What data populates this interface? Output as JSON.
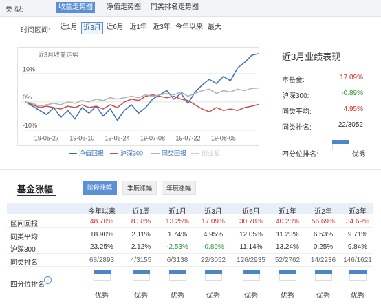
{
  "nav": {
    "type_label": "类 型:",
    "chart_tabs": [
      "收益走势图",
      "净值走势图",
      "同类排名走势图"
    ],
    "selected_tab": 0,
    "period_label": "时间区间:",
    "periods": [
      "近1月",
      "近3月",
      "近6月",
      "近1年",
      "近3年",
      "今年以来",
      "最大"
    ],
    "selected_period": 1
  },
  "chart_data": {
    "type": "line",
    "title": "近3月收益走势",
    "x": [
      "19-05-17",
      "19-05-21",
      "19-05-23",
      "19-05-27",
      "19-05-29",
      "19-05-31",
      "19-06-04",
      "19-06-06",
      "19-06-10",
      "19-06-12",
      "19-06-14",
      "19-06-18",
      "19-06-20",
      "19-06-24",
      "19-06-26",
      "19-06-28",
      "19-07-02",
      "19-07-04",
      "19-07-08",
      "19-07-10",
      "19-07-12",
      "19-07-16",
      "19-07-18",
      "19-07-22",
      "19-07-24",
      "19-07-26",
      "19-07-30",
      "19-08-01",
      "19-08-05",
      "19-08-07",
      "19-08-09",
      "19-08-13",
      "19-08-15",
      "19-08-16"
    ],
    "xticks": [
      "19-05-27",
      "19-06-10",
      "19-06-24",
      "19-07-08",
      "19-07-22",
      "19-08-05"
    ],
    "ylim": [
      -11.5,
      19
    ],
    "yticks": [
      {
        "value": 10,
        "label": "10%"
      },
      {
        "value": 0,
        "label": "0%"
      },
      {
        "value": -10,
        "label": "-10%"
      }
    ],
    "grid": true,
    "series": [
      {
        "name": "净值回报",
        "color": "#3a6fb5",
        "values": [
          0,
          -1.5,
          -3,
          -4.5,
          -2,
          -5.5,
          -3,
          -6,
          -2,
          -4,
          -1.5,
          -5,
          -2.5,
          -6.5,
          -3,
          -1,
          -4,
          -2,
          1,
          2.5,
          4,
          1,
          3,
          -0.5,
          3.5,
          6,
          8,
          6.5,
          9,
          7.5,
          12,
          14,
          16.5,
          17.09
        ]
      },
      {
        "name": "沪深300",
        "color": "#c0504d",
        "values": [
          0,
          -1,
          -2,
          -1.5,
          -2,
          -2.5,
          -1.5,
          -2,
          -1,
          -2,
          -1.5,
          -2.5,
          -1,
          -2,
          0,
          1,
          0.5,
          2,
          2.5,
          2,
          1.5,
          2,
          1,
          0.5,
          -1,
          -2.5,
          -3.5,
          -2,
          -3,
          -2.5,
          -3,
          -2,
          -1.5,
          -0.89
        ]
      },
      {
        "name": "同类回报",
        "color": "#b0b0b0",
        "values": [
          0,
          -0.5,
          -1.5,
          -1,
          -0.5,
          -1,
          0,
          -0.5,
          0.5,
          0,
          1,
          0.5,
          1.5,
          1,
          1.5,
          2,
          1.5,
          2.5,
          2,
          2.5,
          3,
          2.5,
          3.5,
          2,
          3,
          4,
          4.5,
          3,
          4,
          3.5,
          4.5,
          4,
          4.8,
          4.95
        ]
      }
    ],
    "hidden_series": [
      {
        "name": "创业板",
        "color": "#cccccc"
      }
    ]
  },
  "performance": {
    "title": "近3月业绩表现",
    "rows": [
      {
        "label": "本基金:",
        "value": "17.09%"
      },
      {
        "label": "沪深300:",
        "value": "-0.89%"
      },
      {
        "label": "同类平均:",
        "value": "4.95%"
      },
      {
        "label": "同类排名:",
        "value": "22/3052"
      }
    ],
    "quartile_label": "四分位排名:",
    "quartile_value": "优秀"
  },
  "section": {
    "title": "基金涨幅",
    "tabs": [
      "阶段涨幅",
      "季度涨幅",
      "年度涨幅"
    ],
    "selected_tab": 0
  },
  "table": {
    "headers": [
      "今年以来",
      "近1周",
      "近1月",
      "近3月",
      "近6月",
      "近1年",
      "近2年",
      "近3年"
    ],
    "rows": [
      {
        "label": "区间回报",
        "cells": [
          "48.70%",
          "8.38%",
          "13.25%",
          "17.09%",
          "30.78%",
          "40.28%",
          "56.69%",
          "34.69%"
        ]
      },
      {
        "label": "同类平均",
        "cells": [
          "18.90%",
          "2.11%",
          "1.74%",
          "4.95%",
          "12.05%",
          "11.23%",
          "6.53%",
          "9.71%"
        ]
      },
      {
        "label": "沪深300",
        "cells": [
          "23.25%",
          "2.12%",
          "-2.53%",
          "-0.89%",
          "11.14%",
          "13.24%",
          "0.25%",
          "9.84%"
        ]
      },
      {
        "label": "同类排名",
        "cells": [
          "68/2893",
          "4/3155",
          "6/3138",
          "22/3052",
          "126/2935",
          "52/2762",
          "14/2236",
          "146/1621"
        ]
      }
    ],
    "quartile_label": "四分位排名",
    "quartile_values": [
      "优秀",
      "优秀",
      "优秀",
      "优秀",
      "优秀",
      "优秀",
      "优秀",
      "优秀"
    ]
  }
}
